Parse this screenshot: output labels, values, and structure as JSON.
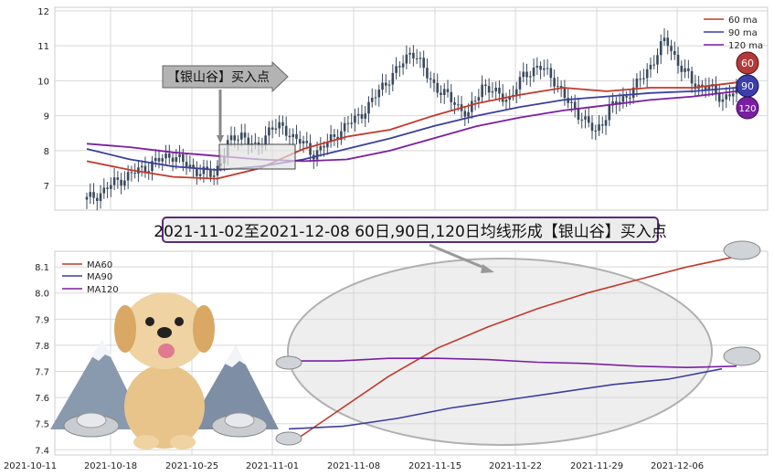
{
  "colors": {
    "ma60": "#c0392b",
    "ma90": "#3b3f9e",
    "ma120": "#7b1fa2",
    "candle": "#3a4a5e",
    "grid": "#d8d8d8"
  },
  "chart_data": [
    {
      "type": "line",
      "x_ticks": [
        "2021-10-11",
        "2021-10-18",
        "2021-10-25",
        "2021-11-01",
        "2021-11-08",
        "2021-11-15",
        "2021-11-22",
        "2021-11-29",
        "2021-12-06"
      ],
      "ylim": [
        6.3,
        12.1
      ],
      "y_ticks": [
        7,
        8,
        9,
        10,
        11,
        12
      ],
      "grid": true,
      "legend_position": "top-right",
      "series": [
        {
          "name": "60 ma",
          "values": [
            7.7,
            7.45,
            7.25,
            7.2,
            7.5,
            8.05,
            8.4,
            8.6,
            9.0,
            9.35,
            9.6,
            9.8,
            9.7,
            9.8,
            9.8,
            9.95
          ]
        },
        {
          "name": "90 ma",
          "values": [
            8.05,
            7.75,
            7.55,
            7.45,
            7.55,
            7.75,
            8.05,
            8.35,
            8.7,
            9.0,
            9.25,
            9.45,
            9.55,
            9.65,
            9.7,
            9.8
          ]
        },
        {
          "name": "120 ma",
          "values": [
            8.2,
            8.1,
            7.95,
            7.85,
            7.75,
            7.7,
            7.75,
            8.0,
            8.35,
            8.7,
            8.95,
            9.15,
            9.3,
            9.45,
            9.55,
            9.7
          ]
        }
      ],
      "close_prices": [
        6.6,
        6.8,
        7.1,
        7.3,
        7.5,
        7.7,
        7.9,
        7.6,
        7.4,
        7.3,
        8.2,
        8.5,
        8.0,
        8.7,
        8.6,
        8.3,
        7.9,
        8.2,
        8.6,
        8.9,
        9.3,
        9.9,
        10.3,
        10.9,
        10.2,
        9.7,
        9.4,
        9.0,
        9.9,
        9.6,
        9.5,
        10.2,
        10.4,
        10.1,
        9.4,
        9.0,
        8.5,
        9.2,
        9.5,
        9.9,
        10.5,
        11.2,
        10.4,
        9.9,
        9.8,
        9.5,
        9.7
      ],
      "badges": [
        "60",
        "90",
        "120"
      ],
      "annotation": "【银山谷】买入点"
    },
    {
      "type": "line",
      "x_ticks": [
        "2021-10-11",
        "2021-10-18",
        "2021-10-25",
        "2021-11-01",
        "2021-11-08",
        "2021-11-15",
        "2021-11-22",
        "2021-11-29",
        "2021-12-06"
      ],
      "ylim": [
        7.38,
        8.16
      ],
      "y_ticks": [
        7.4,
        7.5,
        7.6,
        7.7,
        7.8,
        7.9,
        8.0,
        8.1
      ],
      "grid": true,
      "legend_position": "top-left",
      "series": [
        {
          "name": "MA60",
          "values": [
            7.42,
            7.55,
            7.68,
            7.79,
            7.87,
            7.94,
            8.0,
            8.05,
            8.1,
            8.14
          ]
        },
        {
          "name": "MA90",
          "values": [
            7.48,
            7.49,
            7.52,
            7.56,
            7.59,
            7.62,
            7.65,
            7.67,
            7.71
          ]
        },
        {
          "name": "MA120",
          "values": [
            7.74,
            7.74,
            7.75,
            7.75,
            7.745,
            7.735,
            7.73,
            7.72,
            7.715,
            7.72
          ]
        }
      ]
    }
  ],
  "headline": "2021-11-02至2021-12-08 60日,90日,120日均线形成【银山谷】买入点"
}
